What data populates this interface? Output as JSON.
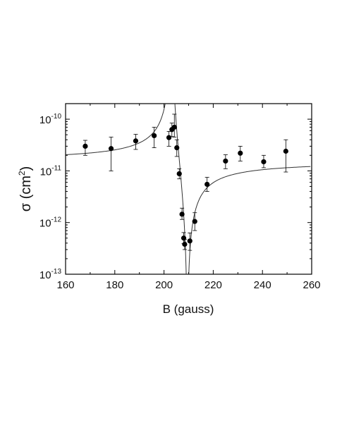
{
  "chart_data": {
    "type": "scatter",
    "title": "",
    "xlabel": "B (gauss)",
    "ylabel": {
      "prefix": "σ (cm",
      "superscript": "2",
      "suffix": ")"
    },
    "x_scale": "linear",
    "y_scale": "log",
    "xlim": [
      160,
      260
    ],
    "ylim": [
      1e-13,
      2e-10
    ],
    "x_ticks": [
      160,
      180,
      200,
      220,
      240,
      260
    ],
    "x_tick_labels": [
      "160",
      "180",
      "200",
      "220",
      "240",
      "260"
    ],
    "y_ticks": [
      {
        "value": 1e-13,
        "base": "10",
        "exp": "-13"
      },
      {
        "value": 1e-12,
        "base": "10",
        "exp": "-12"
      },
      {
        "value": 1e-11,
        "base": "10",
        "exp": "-11"
      },
      {
        "value": 1e-10,
        "base": "10",
        "exp": "-10"
      }
    ],
    "grid": false,
    "legend": "none",
    "series": [
      {
        "kind": "points_with_error_bars",
        "marker_color": "#000000",
        "points": [
          {
            "x": 168,
            "y": 3e-11,
            "y_low": 2e-11,
            "y_high": 3.9e-11
          },
          {
            "x": 178.5,
            "y": 2.7e-11,
            "y_low": 1e-11,
            "y_high": 4.5e-11
          },
          {
            "x": 188.5,
            "y": 3.8e-11,
            "y_low": 2.6e-11,
            "y_high": 5.1e-11
          },
          {
            "x": 196,
            "y": 4.8e-11,
            "y_low": 2.8e-11,
            "y_high": 7e-11
          },
          {
            "x": 202,
            "y": 4.4e-11,
            "y_low": 3e-11,
            "y_high": 5.8e-11
          },
          {
            "x": 203.2,
            "y": 6.3e-11,
            "y_low": 4.6e-11,
            "y_high": 8.4e-11
          },
          {
            "x": 204.2,
            "y": 7e-11,
            "y_low": 4.5e-11,
            "y_high": 1.25e-10
          },
          {
            "x": 205.2,
            "y": 2.8e-11,
            "y_low": 1.9e-11,
            "y_high": 4e-11
          },
          {
            "x": 206.2,
            "y": 8.8e-12,
            "y_low": 7e-12,
            "y_high": 1.1e-11
          },
          {
            "x": 207.3,
            "y": 1.45e-12,
            "y_low": 1.15e-12,
            "y_high": 1.9e-12
          },
          {
            "x": 208.0,
            "y": 5e-13,
            "y_low": 3.9e-13,
            "y_high": 6.4e-13
          },
          {
            "x": 208.4,
            "y": 3.8e-13,
            "y_low": 3e-13,
            "y_high": 4.7e-13
          },
          {
            "x": 210.5,
            "y": 4.4e-13,
            "y_low": 2.9e-13,
            "y_high": 6.3e-13
          },
          {
            "x": 212.5,
            "y": 1.05e-12,
            "y_low": 7e-13,
            "y_high": 1.55e-12
          },
          {
            "x": 217.5,
            "y": 5.5e-12,
            "y_low": 4e-12,
            "y_high": 7.5e-12
          },
          {
            "x": 225,
            "y": 1.55e-11,
            "y_low": 1.1e-11,
            "y_high": 2.05e-11
          },
          {
            "x": 231,
            "y": 2.2e-11,
            "y_low": 1.55e-11,
            "y_high": 3e-11
          },
          {
            "x": 240.5,
            "y": 1.5e-11,
            "y_low": 1.15e-11,
            "y_high": 2e-11
          },
          {
            "x": 249.5,
            "y": 2.4e-11,
            "y_low": 9.5e-12,
            "y_high": 4e-11
          }
        ]
      },
      {
        "kind": "fit_curve",
        "line_color": "#333333",
        "model": "sigma = A * (1 - Delta / (B - B0))^2",
        "parameters": {
          "A": 1.55e-11,
          "B0": 203.0,
          "Delta": 6.5
        },
        "x_range": [
          160,
          260
        ]
      }
    ]
  }
}
